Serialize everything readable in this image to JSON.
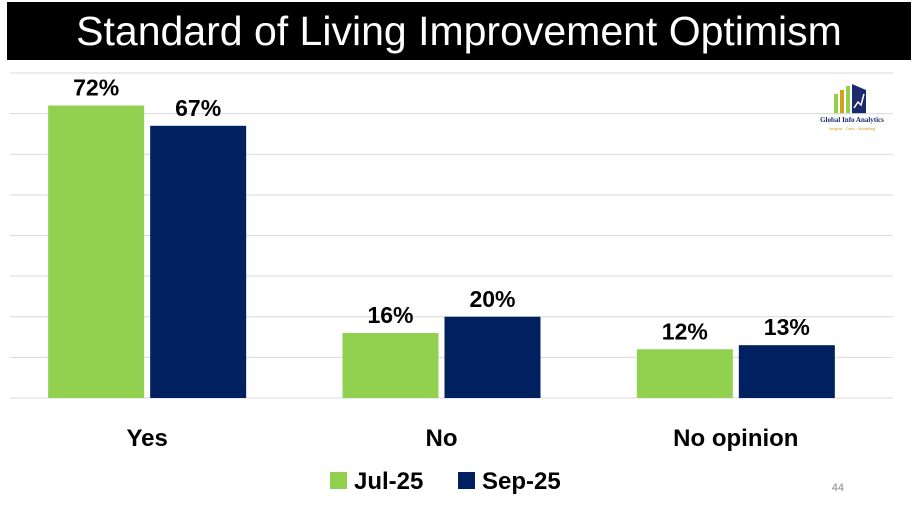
{
  "title": "Standard of Living Improvement Optimism",
  "logo": {
    "name": "Global Info Analytics",
    "tagline": "Insights · Data · Modelling"
  },
  "page_number": "44",
  "colors": {
    "jul": "#92d050",
    "sep": "#002060",
    "grid": "#d9d9d9"
  },
  "chart_data": {
    "type": "bar",
    "categories": [
      "Yes",
      "No",
      "No opinion"
    ],
    "series": [
      {
        "name": "Jul-25",
        "values": [
          72,
          16,
          12
        ],
        "labels": [
          "72%",
          "16%",
          "12%"
        ]
      },
      {
        "name": "Sep-25",
        "values": [
          67,
          20,
          13
        ],
        "labels": [
          "67%",
          "20%",
          "13%"
        ]
      }
    ],
    "ylim": [
      0,
      80
    ],
    "grid": true,
    "legend": "bottom"
  }
}
